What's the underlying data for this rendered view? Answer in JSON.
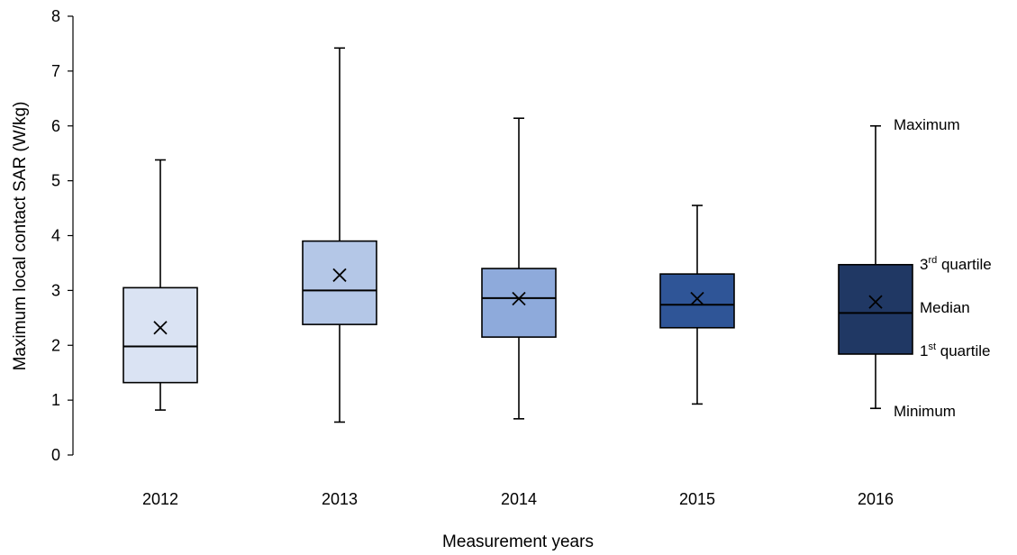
{
  "chart_data": {
    "type": "boxplot",
    "title": "",
    "xlabel": "Measurement years",
    "ylabel": "Maximum local contact SAR (W/kg)",
    "ylim": [
      0,
      8
    ],
    "yticks": [
      "0",
      "1",
      "2",
      "3",
      "4",
      "5",
      "6",
      "7",
      "8"
    ],
    "grid": false,
    "categories": [
      "2012",
      "2013",
      "2014",
      "2015",
      "2016"
    ],
    "boxes": [
      {
        "category": "2012",
        "min": 0.82,
        "q1": 1.32,
        "median": 1.98,
        "mean": 2.32,
        "q3": 3.05,
        "max": 5.38,
        "color": "#dae3f3"
      },
      {
        "category": "2013",
        "min": 0.6,
        "q1": 2.38,
        "median": 3.0,
        "mean": 3.28,
        "q3": 3.9,
        "max": 7.42,
        "color": "#b4c7e7"
      },
      {
        "category": "2014",
        "min": 0.66,
        "q1": 2.15,
        "median": 2.86,
        "mean": 2.85,
        "q3": 3.4,
        "max": 6.14,
        "color": "#8eaadb"
      },
      {
        "category": "2015",
        "min": 0.93,
        "q1": 2.32,
        "median": 2.74,
        "mean": 2.85,
        "q3": 3.3,
        "max": 4.55,
        "color": "#2f5597"
      },
      {
        "category": "2016",
        "min": 0.85,
        "q1": 1.84,
        "median": 2.59,
        "mean": 2.79,
        "q3": 3.47,
        "max": 6.0,
        "color": "#203864"
      }
    ],
    "annotations": {
      "maximum": "Maximum",
      "q3_main": "3",
      "q3_sup": "rd",
      "q3_rest": " quartile",
      "median": "Median",
      "q1_main": "1",
      "q1_sup": "st",
      "q1_rest": " quartile",
      "minimum": "Minimum"
    }
  }
}
